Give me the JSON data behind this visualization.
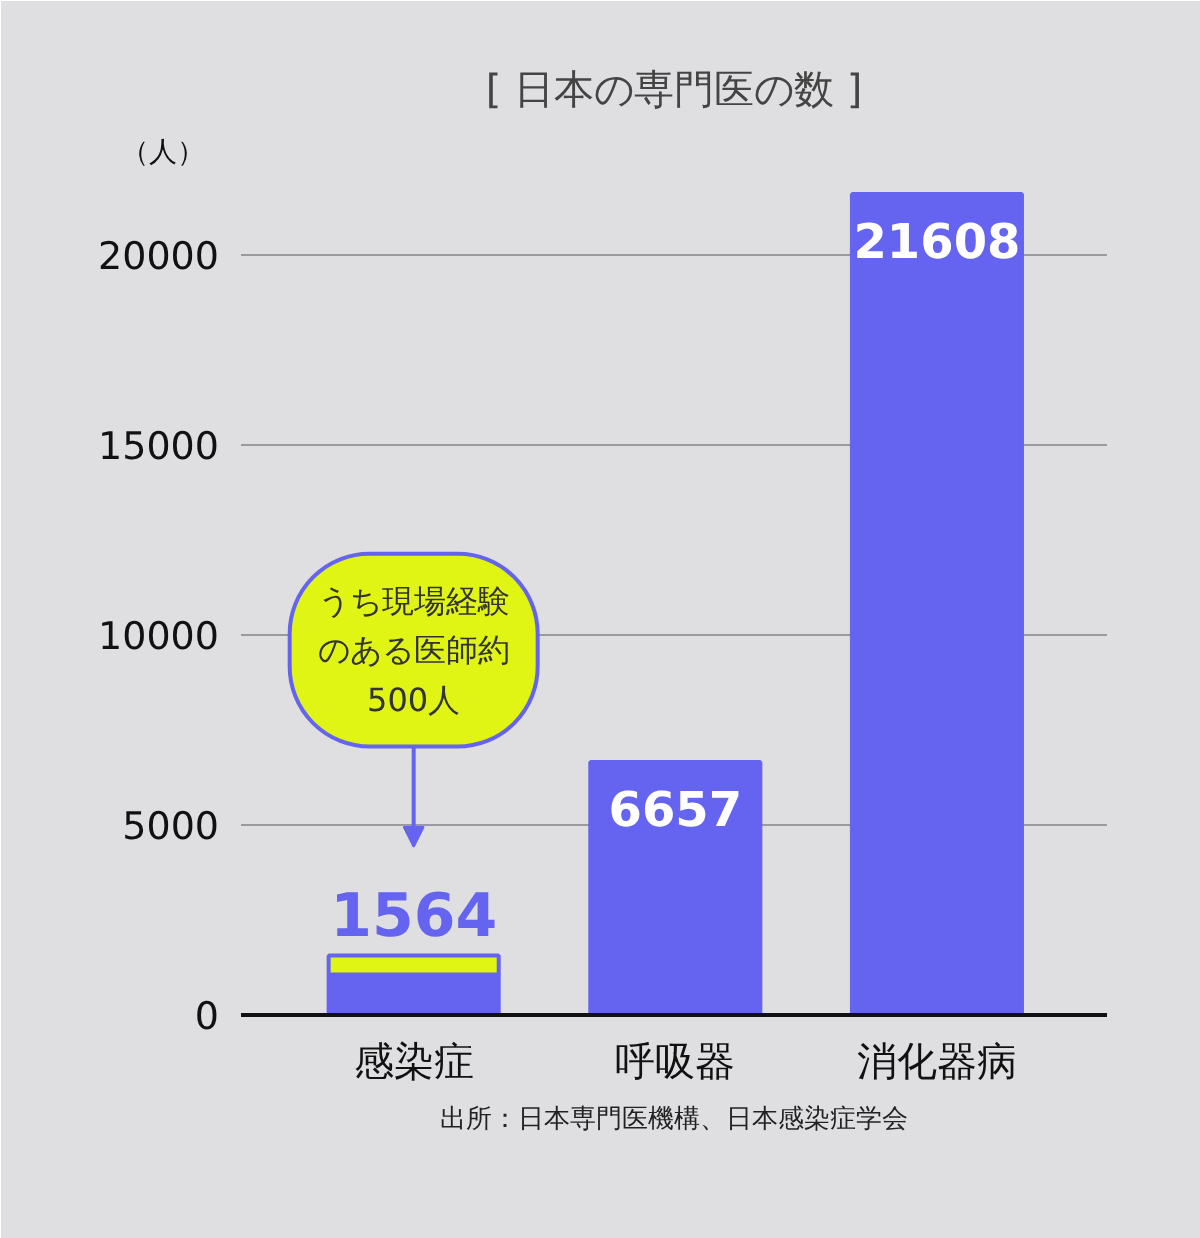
{
  "chart_data": {
    "type": "bar",
    "title": "[ 日本の専門医の数 ]",
    "ylabel": "（人）",
    "categories": [
      "感染症",
      "呼吸器",
      "消化器病"
    ],
    "stacked": true,
    "series": [
      {
        "color": "#6464f0",
        "values": [
          1064,
          6657,
          21608
        ]
      },
      {
        "color": "#e0f514",
        "values": [
          500,
          null,
          null
        ]
      }
    ],
    "totals": [
      "1564",
      "6657",
      "21608"
    ],
    "ylim": [
      0,
      22000
    ],
    "yticks": [
      0,
      5000,
      10000,
      15000,
      20000
    ],
    "grid": "y",
    "annotations": [
      "うち現場経験のある医師約500人",
      "出所：日本専門医機構、日本感染症学会"
    ]
  }
}
